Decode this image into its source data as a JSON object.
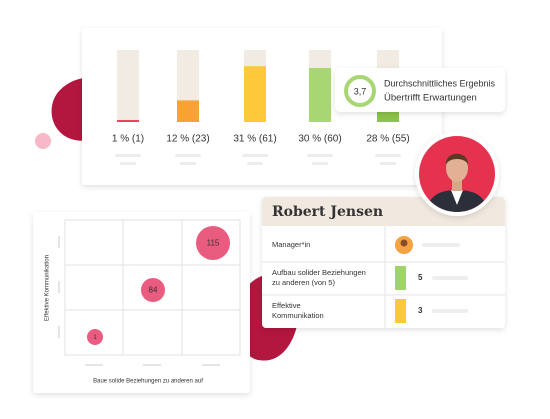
{
  "distribution": {
    "bars": [
      {
        "label": "1 % (1)",
        "percent": 1,
        "color": "#e8475f"
      },
      {
        "label": "12 % (23)",
        "percent": 12,
        "color": "#f7a233"
      },
      {
        "label": "31 % (61)",
        "percent": 31,
        "color": "#fcc93a"
      },
      {
        "label": "30 % (60)",
        "percent": 30,
        "color": "#a8d672"
      },
      {
        "label": "28 % (55)",
        "percent": 28,
        "color": "#8bc34a"
      }
    ]
  },
  "summary": {
    "score": "3,7",
    "title": "Durchschnittliches Ergebnis",
    "result": "Übertrifft Erwartungen"
  },
  "profile": {
    "name": "Robert Jensen",
    "rows": [
      {
        "label": "Manager*in"
      },
      {
        "label": [
          "Aufbau solider Beziehungen",
          "zu anderen (von 5)"
        ],
        "value": "5",
        "color": "#9fd46a"
      },
      {
        "label": [
          "Effektive",
          "Kommunikation"
        ],
        "value": "3",
        "color": "#fcc93a"
      }
    ]
  },
  "matrix": {
    "y_label": "Effektive Kommunikation",
    "x_label": "Baue solide Beziehungen zu anderen auf",
    "bubbles": [
      "115",
      "84",
      "1"
    ]
  }
}
